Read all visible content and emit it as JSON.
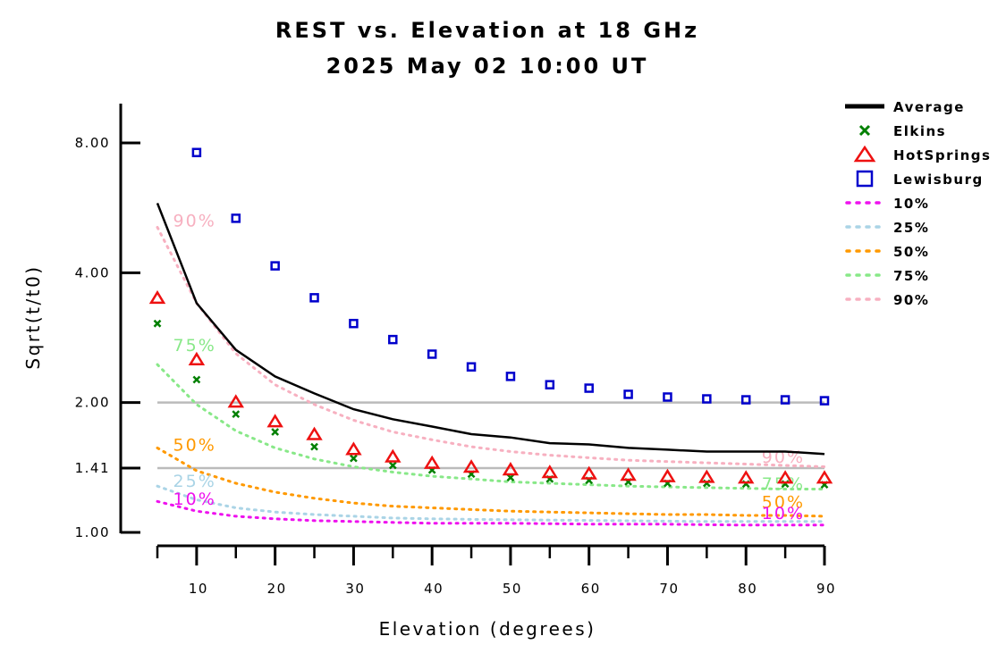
{
  "chart_data": {
    "type": "line",
    "title": "REST vs. Elevation at 18 GHz",
    "subtitle": "2025 May 02 10:00 UT",
    "xlabel": "Elevation (degrees)",
    "ylabel": "Sqrt(t/t0)",
    "y_scale": "log",
    "xlim": [
      5,
      90
    ],
    "ylim": [
      1.0,
      9.6
    ],
    "x_ticks": [
      10,
      20,
      30,
      40,
      50,
      60,
      70,
      80,
      90
    ],
    "y_ticks": [
      1.0,
      1.41,
      2.0,
      4.0,
      8.0
    ],
    "y_tick_labels": [
      "1.00",
      "1.41",
      "2.00",
      "4.00",
      "8.00"
    ],
    "reference_lines": [
      1.41,
      2.0
    ],
    "x": [
      5,
      10,
      15,
      20,
      25,
      30,
      35,
      40,
      45,
      50,
      55,
      60,
      65,
      70,
      75,
      80,
      85,
      90
    ],
    "series": [
      {
        "name": "Average",
        "style": "line",
        "color": "#000000",
        "values": [
          5.8,
          3.4,
          2.65,
          2.3,
          2.1,
          1.93,
          1.83,
          1.76,
          1.69,
          1.66,
          1.61,
          1.6,
          1.57,
          1.555,
          1.54,
          1.54,
          1.54,
          1.52
        ]
      },
      {
        "name": "Elkins",
        "style": "x-marker",
        "color": "#008000",
        "values": [
          3.05,
          2.26,
          1.88,
          1.71,
          1.58,
          1.485,
          1.43,
          1.395,
          1.365,
          1.34,
          1.33,
          1.32,
          1.31,
          1.3,
          1.3,
          1.295,
          1.295,
          1.29
        ]
      },
      {
        "name": "HotSprings",
        "style": "triangle-marker",
        "color": "#ee1111",
        "values": [
          3.5,
          2.52,
          2.01,
          1.81,
          1.69,
          1.56,
          1.5,
          1.45,
          1.42,
          1.4,
          1.38,
          1.37,
          1.36,
          1.35,
          1.345,
          1.34,
          1.34,
          1.34
        ]
      },
      {
        "name": "Lewisburg",
        "style": "square-marker",
        "color": "#0000cc",
        "values": [
          null,
          7.6,
          5.35,
          4.15,
          3.5,
          3.05,
          2.8,
          2.59,
          2.42,
          2.3,
          2.2,
          2.16,
          2.09,
          2.06,
          2.04,
          2.03,
          2.03,
          2.02
        ]
      },
      {
        "name": "10%",
        "style": "dotted",
        "color": "#ee11ee",
        "values": [
          1.18,
          1.12,
          1.09,
          1.075,
          1.065,
          1.06,
          1.055,
          1.05,
          1.05,
          1.05,
          1.048,
          1.045,
          1.045,
          1.045,
          1.042,
          1.04,
          1.04,
          1.04
        ]
      },
      {
        "name": "25%",
        "style": "dotted",
        "color": "#aad4e6",
        "values": [
          1.28,
          1.19,
          1.14,
          1.115,
          1.1,
          1.09,
          1.08,
          1.075,
          1.072,
          1.07,
          1.068,
          1.066,
          1.064,
          1.062,
          1.06,
          1.06,
          1.06,
          1.06
        ]
      },
      {
        "name": "50%",
        "style": "dotted",
        "color": "#ff9900",
        "values": [
          1.57,
          1.39,
          1.3,
          1.24,
          1.2,
          1.17,
          1.15,
          1.14,
          1.13,
          1.12,
          1.115,
          1.11,
          1.105,
          1.1,
          1.1,
          1.095,
          1.095,
          1.09
        ]
      },
      {
        "name": "75%",
        "style": "dotted",
        "color": "#88e888",
        "values": [
          2.45,
          1.98,
          1.72,
          1.57,
          1.48,
          1.42,
          1.38,
          1.35,
          1.33,
          1.31,
          1.3,
          1.29,
          1.28,
          1.275,
          1.27,
          1.265,
          1.26,
          1.26
        ]
      },
      {
        "name": "90%",
        "style": "dotted",
        "color": "#f7b0c0",
        "values": [
          5.1,
          3.4,
          2.6,
          2.2,
          1.98,
          1.82,
          1.71,
          1.64,
          1.58,
          1.54,
          1.51,
          1.49,
          1.47,
          1.46,
          1.45,
          1.44,
          1.43,
          1.42
        ]
      }
    ],
    "curve_labels": [
      {
        "text": "90%",
        "color": "#f7b0c0",
        "x": 7,
        "y": 5.3
      },
      {
        "text": "75%",
        "color": "#88e888",
        "x": 7,
        "y": 2.72
      },
      {
        "text": "50%",
        "color": "#ff9900",
        "x": 7,
        "y": 1.6
      },
      {
        "text": "25%",
        "color": "#aad4e6",
        "x": 7,
        "y": 1.32
      },
      {
        "text": "10%",
        "color": "#ee11ee",
        "x": 7,
        "y": 1.2
      },
      {
        "text": "90%",
        "color": "#f7b0c0",
        "x": 82,
        "y": 1.5
      },
      {
        "text": "75%",
        "color": "#88e888",
        "x": 82,
        "y": 1.3
      },
      {
        "text": "50%",
        "color": "#ff9900",
        "x": 82,
        "y": 1.18
      },
      {
        "text": "10%",
        "color": "#ee11ee",
        "x": 82,
        "y": 1.11
      }
    ],
    "legend": {
      "position": "right",
      "entries": [
        {
          "label": "Average",
          "style": "line",
          "color": "#000000"
        },
        {
          "label": "Elkins",
          "style": "x-marker",
          "color": "#008000"
        },
        {
          "label": "HotSprings",
          "style": "triangle-marker",
          "color": "#ee1111"
        },
        {
          "label": "Lewisburg",
          "style": "square-marker",
          "color": "#0000cc"
        },
        {
          "label": "10%",
          "style": "dotted",
          "color": "#ee11ee"
        },
        {
          "label": "25%",
          "style": "dotted",
          "color": "#aad4e6"
        },
        {
          "label": "50%",
          "style": "dotted",
          "color": "#ff9900"
        },
        {
          "label": "75%",
          "style": "dotted",
          "color": "#88e888"
        },
        {
          "label": "90%",
          "style": "dotted",
          "color": "#f7b0c0"
        }
      ]
    },
    "grid": false
  }
}
